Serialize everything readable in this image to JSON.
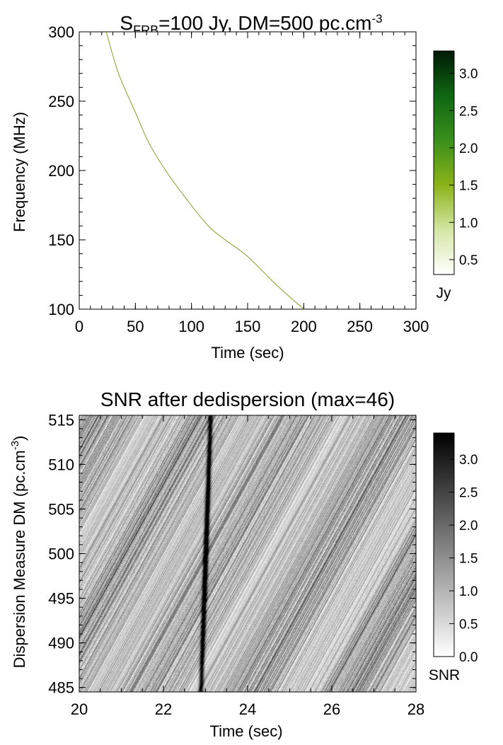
{
  "chart_data": [
    {
      "type": "line",
      "title": {
        "prefix": "S",
        "subscript": "FRB",
        "middle": "=100 Jy, DM=500 pc.cm",
        "superscript": "-3"
      },
      "xlabel": "Time (sec)",
      "ylabel": "Frequency (MHz)",
      "xlim": [
        0,
        300
      ],
      "ylim": [
        100,
        300
      ],
      "x_ticks": [
        "0",
        "50",
        "100",
        "150",
        "200",
        "250",
        "300"
      ],
      "y_ticks": [
        "100",
        "150",
        "200",
        "250",
        "300"
      ],
      "series": [
        {
          "color": "#8a9a2a",
          "points": [
            [
              24,
              300
            ],
            [
              35,
              270
            ],
            [
              50,
              242
            ],
            [
              62,
              220
            ],
            [
              77,
              200
            ],
            [
              95,
              180
            ],
            [
              115,
              160
            ],
            [
              130,
              150
            ],
            [
              150,
              138
            ],
            [
              175,
              118
            ],
            [
              200,
              100
            ]
          ]
        }
      ],
      "colorbar": {
        "label": "Jy",
        "ticks": [
          "0.5",
          "1.0",
          "1.5",
          "2.0",
          "2.5",
          "3.0"
        ],
        "range": [
          0.3,
          3.3
        ],
        "colors": [
          "#ffffff",
          "#d4e6a4",
          "#8bb319",
          "#3a8f1c",
          "#0f6613",
          "#001a05"
        ]
      }
    },
    {
      "type": "heatmap",
      "title": "SNR after dedispersion (max=46)",
      "xlabel": "Time (sec)",
      "ylabel": {
        "main": "Dispersion Measure DM (pc.cm",
        "superscript": "-3",
        "close": ")"
      },
      "xlim": [
        20,
        28
      ],
      "ylim": [
        484.5,
        515.5
      ],
      "x_ticks": [
        "20",
        "22",
        "24",
        "26",
        "28"
      ],
      "y_ticks": [
        "485",
        "490",
        "495",
        "500",
        "505",
        "510",
        "515"
      ],
      "signal": {
        "time": 23.0,
        "dm": 500,
        "snr_max": 46
      },
      "colorbar": {
        "label": "SNR",
        "ticks": [
          "0.0",
          "0.5",
          "1.0",
          "1.5",
          "2.0",
          "2.5",
          "3.0"
        ],
        "range": [
          0.0,
          3.4
        ],
        "colors": [
          "#ffffff",
          "#000000"
        ]
      }
    }
  ]
}
